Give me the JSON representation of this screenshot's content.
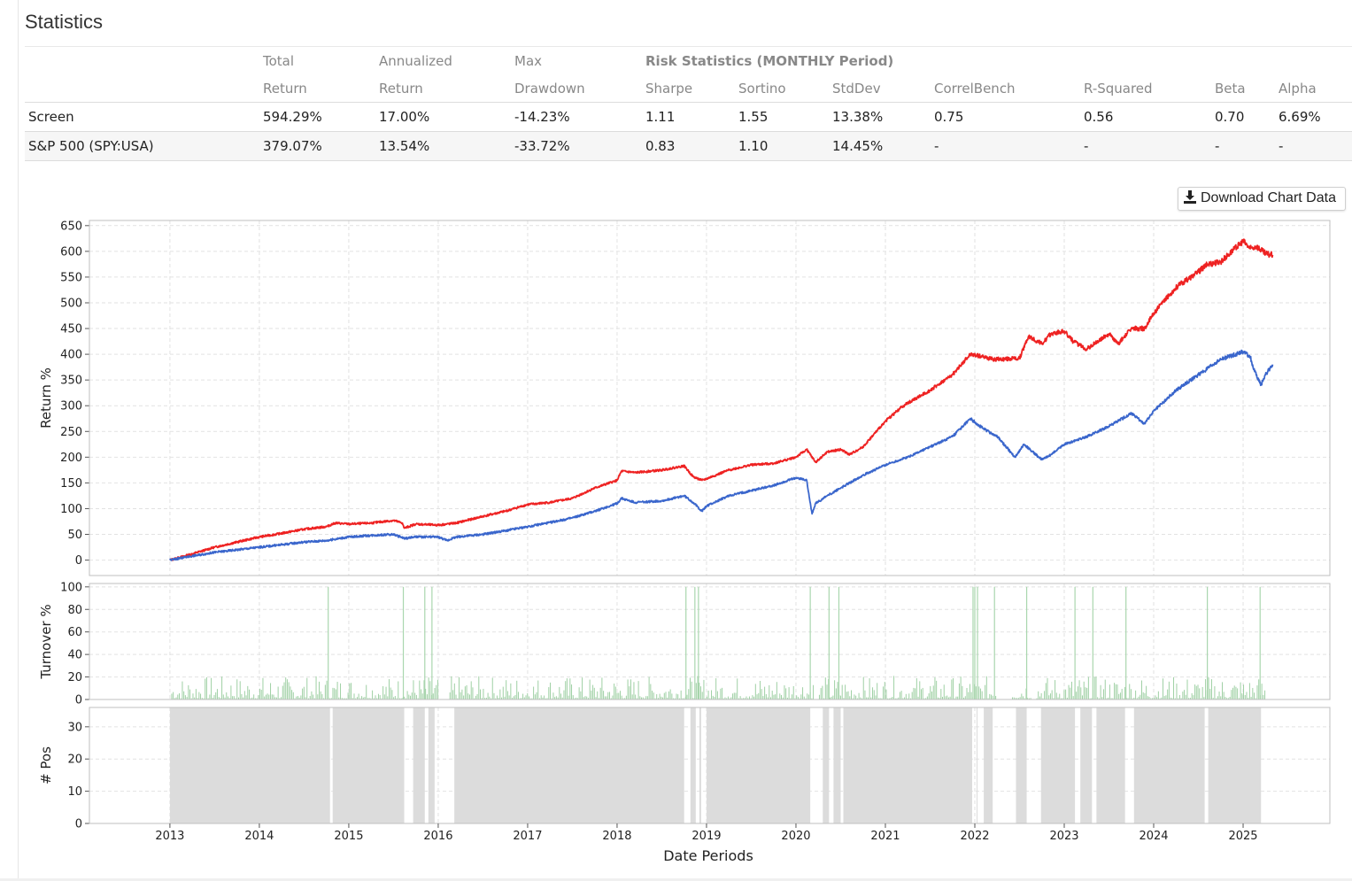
{
  "page": {
    "title": "Statistics"
  },
  "stats": {
    "risk_header": "Risk Statistics (MONTHLY Period)",
    "header_top": [
      "",
      "Total",
      "Annualized",
      "Max",
      "",
      "",
      "",
      "",
      "",
      "",
      ""
    ],
    "header_bottom": [
      "",
      "Return",
      "Return",
      "Drawdown",
      "Sharpe",
      "Sortino",
      "StdDev",
      "CorrelBench",
      "R-Squared",
      "Beta",
      "Alpha"
    ],
    "rows": [
      {
        "name": "Screen",
        "values": [
          "594.29%",
          "17.00%",
          "-14.23%",
          "1.11",
          "1.55",
          "13.38%",
          "0.75",
          "0.56",
          "0.70",
          "6.69%"
        ]
      },
      {
        "name": "S&P 500 (SPY:USA)",
        "values": [
          "379.07%",
          "13.54%",
          "-33.72%",
          "0.83",
          "1.10",
          "14.45%",
          "-",
          "-",
          "-",
          "-"
        ]
      }
    ]
  },
  "download_button": {
    "label": "Download Chart Data",
    "icon": "download-icon"
  },
  "chart_data": [
    {
      "type": "line",
      "ylabel": "Return %",
      "ylim": [
        -30,
        660
      ],
      "yticks": [
        0,
        50,
        100,
        150,
        200,
        250,
        300,
        350,
        400,
        450,
        500,
        550,
        600,
        650
      ],
      "xlim": [
        2012.1,
        2025.97
      ],
      "grid": true,
      "series": [
        {
          "color": "#ee2222",
          "x": [
            2013.0,
            2013.25,
            2013.5,
            2013.75,
            2014.0,
            2014.25,
            2014.5,
            2014.75,
            2014.85,
            2015.0,
            2015.25,
            2015.5,
            2015.6,
            2015.62,
            2015.75,
            2016.0,
            2016.2,
            2016.5,
            2016.75,
            2017.0,
            2017.25,
            2017.5,
            2017.75,
            2018.0,
            2018.05,
            2018.2,
            2018.5,
            2018.75,
            2018.85,
            2018.95,
            2019.0,
            2019.25,
            2019.5,
            2019.75,
            2020.0,
            2020.12,
            2020.22,
            2020.35,
            2020.5,
            2020.6,
            2020.75,
            2021.0,
            2021.2,
            2021.5,
            2021.75,
            2021.95,
            2022.1,
            2022.2,
            2022.5,
            2022.6,
            2022.75,
            2022.85,
            2023.0,
            2023.1,
            2023.25,
            2023.5,
            2023.6,
            2023.75,
            2023.9,
            2024.0,
            2024.25,
            2024.5,
            2024.6,
            2024.75,
            2025.0,
            2025.08,
            2025.15,
            2025.25,
            2025.33
          ],
          "y": [
            0,
            12,
            25,
            35,
            45,
            52,
            60,
            65,
            72,
            70,
            72,
            77,
            72,
            62,
            70,
            68,
            72,
            85,
            95,
            108,
            112,
            120,
            140,
            155,
            173,
            170,
            175,
            183,
            162,
            155,
            158,
            175,
            185,
            188,
            200,
            215,
            190,
            210,
            215,
            205,
            220,
            270,
            300,
            330,
            360,
            400,
            395,
            390,
            392,
            435,
            420,
            440,
            445,
            425,
            410,
            440,
            420,
            450,
            450,
            480,
            530,
            560,
            575,
            580,
            620,
            605,
            610,
            595,
            593
          ]
        },
        {
          "color": "#3a66cc",
          "x": [
            2013.0,
            2013.25,
            2013.5,
            2013.75,
            2014.0,
            2014.25,
            2014.5,
            2014.75,
            2015.0,
            2015.25,
            2015.5,
            2015.62,
            2015.75,
            2016.0,
            2016.1,
            2016.2,
            2016.5,
            2016.75,
            2017.0,
            2017.25,
            2017.5,
            2017.75,
            2018.0,
            2018.05,
            2018.2,
            2018.5,
            2018.75,
            2018.85,
            2018.95,
            2019.0,
            2019.25,
            2019.5,
            2019.75,
            2020.0,
            2020.12,
            2020.18,
            2020.22,
            2020.35,
            2020.5,
            2020.75,
            2021.0,
            2021.25,
            2021.5,
            2021.75,
            2021.95,
            2022.1,
            2022.25,
            2022.45,
            2022.55,
            2022.75,
            2022.85,
            2023.0,
            2023.25,
            2023.5,
            2023.75,
            2023.9,
            2024.0,
            2024.25,
            2024.5,
            2024.75,
            2025.0,
            2025.08,
            2025.12,
            2025.2,
            2025.25,
            2025.33
          ],
          "y": [
            0,
            8,
            15,
            20,
            25,
            30,
            35,
            38,
            45,
            48,
            50,
            42,
            45,
            45,
            38,
            45,
            50,
            57,
            65,
            73,
            82,
            95,
            110,
            120,
            112,
            115,
            125,
            112,
            95,
            105,
            125,
            135,
            145,
            160,
            155,
            90,
            110,
            125,
            140,
            165,
            185,
            200,
            220,
            240,
            275,
            255,
            240,
            200,
            225,
            195,
            205,
            225,
            240,
            260,
            285,
            265,
            290,
            330,
            360,
            390,
            405,
            395,
            370,
            340,
            360,
            380
          ]
        }
      ]
    },
    {
      "type": "bar",
      "ylabel": "Turnover %",
      "ylim": [
        0,
        103
      ],
      "yticks": [
        0,
        20,
        40,
        60,
        80,
        100
      ],
      "xlim": [
        2012.1,
        2025.97
      ],
      "grid": true,
      "color": "#9fd0a4",
      "spikes_x": [
        2014.77,
        2015.61,
        2015.85,
        2015.93,
        2018.77,
        2018.87,
        2018.91,
        2020.16,
        2020.37,
        2020.48,
        2021.98,
        2022.0,
        2022.03,
        2022.22,
        2022.58,
        2023.12,
        2023.32,
        2023.69,
        2024.6,
        2025.19
      ],
      "spikes_y": 100,
      "baseline_range": [
        0,
        20
      ]
    },
    {
      "type": "area",
      "ylabel": "# Pos",
      "ylim": [
        0,
        36
      ],
      "yticks": [
        0,
        10,
        20,
        30
      ],
      "xlim": [
        2012.1,
        2025.97
      ],
      "grid": true,
      "color": "#dcdcdc",
      "value": 36,
      "intervals": [
        [
          2013.0,
          2014.79
        ],
        [
          2014.82,
          2015.62
        ],
        [
          2015.72,
          2015.85
        ],
        [
          2015.89,
          2015.96
        ],
        [
          2016.18,
          2018.75
        ],
        [
          2018.82,
          2018.88
        ],
        [
          2018.92,
          2018.94
        ],
        [
          2019.0,
          2020.16
        ],
        [
          2020.3,
          2020.37
        ],
        [
          2020.42,
          2020.5
        ],
        [
          2020.53,
          2021.97
        ],
        [
          2022.02,
          2022.03
        ],
        [
          2022.1,
          2022.2
        ],
        [
          2022.46,
          2022.58
        ],
        [
          2022.74,
          2023.12
        ],
        [
          2023.18,
          2023.31
        ],
        [
          2023.36,
          2023.68
        ],
        [
          2023.78,
          2024.57
        ],
        [
          2024.61,
          2025.2
        ]
      ]
    }
  ],
  "x_axis": {
    "label": "Date Periods",
    "ticks": [
      "2013",
      "2014",
      "2015",
      "2016",
      "2017",
      "2018",
      "2019",
      "2020",
      "2021",
      "2022",
      "2023",
      "2024",
      "2025"
    ]
  }
}
